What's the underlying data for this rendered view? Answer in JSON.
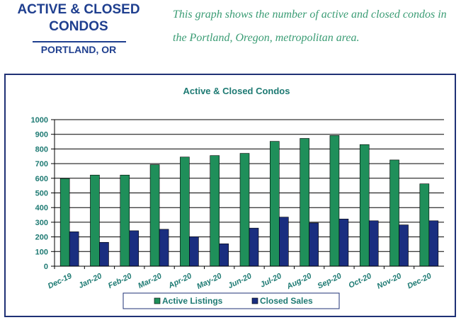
{
  "header": {
    "title": "ACTIVE & CLOSED CONDOS",
    "location": "PORTLAND, OR",
    "description": "This graph shows the number of active and closed condos in the Portland, Oregon, metropolitan area."
  },
  "colors": {
    "header_blue": "#1f3f8f",
    "description_green": "#3a9c74",
    "chart_text": "#1e7a73",
    "active": "#1f8f5a",
    "closed": "#1a2e80",
    "frame": "#1f3175"
  },
  "chart_data": {
    "type": "bar",
    "title": "Active & Closed Condos",
    "categories": [
      "Dec-19",
      "Jan-20",
      "Feb-20",
      "Mar-20",
      "Apr-20",
      "May-20",
      "Jun-20",
      "Jul-20",
      "Aug-20",
      "Sep-20",
      "Oct-20",
      "Nov-20",
      "Dec-20"
    ],
    "series": [
      {
        "name": "Active Listings",
        "values": [
          598,
          622,
          622,
          693,
          745,
          755,
          770,
          852,
          872,
          892,
          830,
          725,
          562
        ]
      },
      {
        "name": "Closed Sales",
        "values": [
          235,
          163,
          242,
          252,
          201,
          153,
          260,
          335,
          295,
          322,
          310,
          282,
          310
        ]
      }
    ],
    "ylim": [
      0,
      1000
    ],
    "yticks": [
      0,
      100,
      200,
      300,
      400,
      500,
      600,
      700,
      800,
      900,
      1000
    ],
    "grid": true,
    "legend_position": "bottom"
  }
}
